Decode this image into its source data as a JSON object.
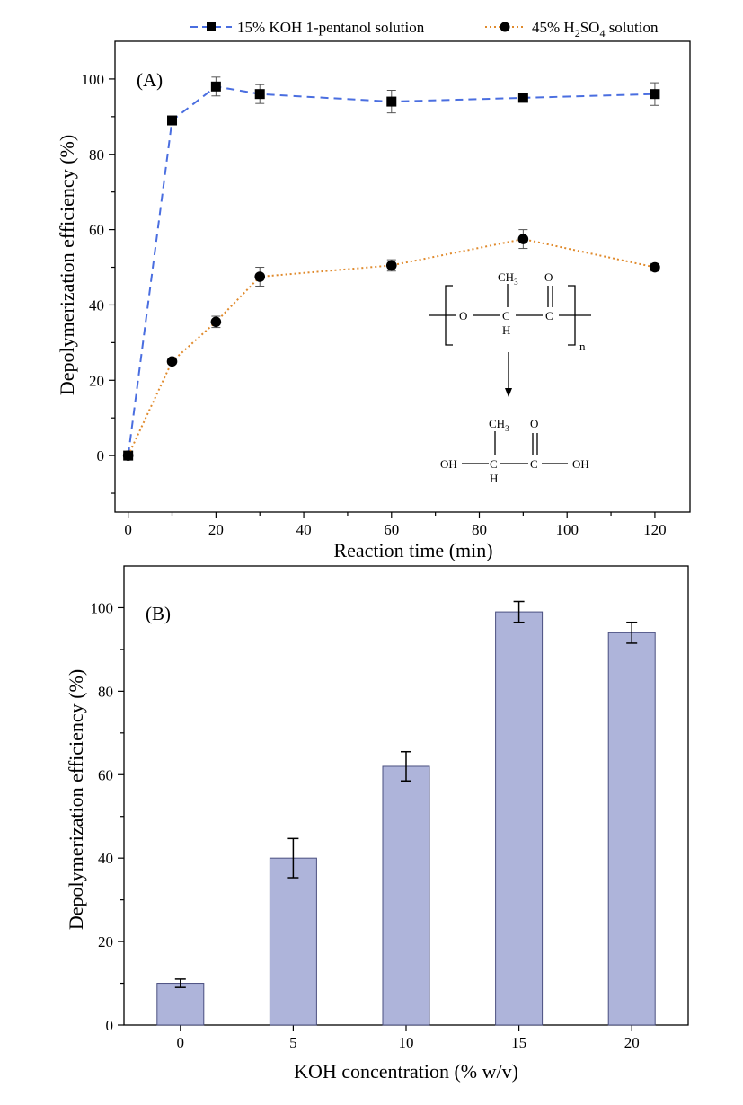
{
  "chart_data": [
    {
      "type": "line",
      "panel_label": "(A)",
      "xlabel": "Reaction time (min)",
      "ylabel": "Depolymerization efficiency (%)",
      "xlim": [
        -3,
        128
      ],
      "ylim": [
        -15,
        110
      ],
      "x_ticks": [
        "0",
        "20",
        "40",
        "60",
        "80",
        "100",
        "120"
      ],
      "y_ticks": [
        "0",
        "20",
        "40",
        "60",
        "80",
        "100"
      ],
      "legend_position": "top",
      "series": [
        {
          "name_parts": [
            "15% KOH 1-pentanol solution"
          ],
          "color": "#4a6ee0",
          "linestyle": "dashed",
          "marker": "square",
          "x": [
            0,
            10,
            20,
            30,
            60,
            90,
            120
          ],
          "y": [
            0,
            89,
            98,
            96,
            94,
            95,
            96
          ],
          "error": [
            0,
            0,
            2.5,
            2.5,
            3,
            1,
            3
          ]
        },
        {
          "name_parts": [
            "45% H",
            "2",
            "SO",
            "4",
            " solution"
          ],
          "color": "#e08a2c",
          "linestyle": "dotted",
          "marker": "circle",
          "x": [
            0,
            10,
            20,
            30,
            60,
            90,
            120
          ],
          "y": [
            0,
            25,
            35.5,
            47.5,
            50.5,
            57.5,
            50
          ],
          "error": [
            0,
            0,
            1.5,
            2.5,
            1.5,
            2.5,
            1
          ]
        }
      ],
      "inset_labels": {
        "ch3_top": "CH",
        "ch3_sub": "3",
        "o_top": "O",
        "o_chain": "O",
        "c_chain": "C",
        "c2_chain": "C",
        "h_chain": "H",
        "n": "n",
        "oh_left": "OH",
        "oh_right": "OH",
        "c_acid": "C",
        "c2_acid": "C",
        "h_acid": "H",
        "ch3_acid": "CH",
        "ch3_acid_sub": "3",
        "o_acid": "O"
      }
    },
    {
      "type": "bar",
      "panel_label": "(B)",
      "xlabel": "KOH concentration (% w/v)",
      "ylabel": "Depolymerization efficiency (%)",
      "categories": [
        "0",
        "5",
        "10",
        "15",
        "20"
      ],
      "values": [
        10,
        40,
        62,
        99,
        94
      ],
      "error": [
        1,
        4.7,
        3.5,
        2.5,
        2.5
      ],
      "ylim": [
        0,
        110
      ],
      "y_ticks": [
        "0",
        "20",
        "40",
        "60",
        "80",
        "100"
      ],
      "bar_color": "#aeb4da"
    }
  ]
}
